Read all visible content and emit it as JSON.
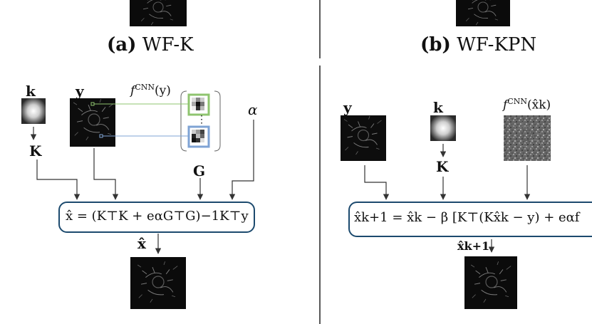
{
  "panel_a": {
    "caption_tag": "(a)",
    "caption_name": "WF-K",
    "label_k": "k",
    "label_y": "y",
    "label_f": "f",
    "label_f_sup": "CNN",
    "label_f_arg": "(y)",
    "label_alpha": "α",
    "label_K": "K",
    "label_G": "G",
    "dots": "⋮",
    "equation": "x̂ = (K⊤K + eαG⊤G)−1K⊤y",
    "output": "x̂"
  },
  "panel_b": {
    "caption_tag": "(b)",
    "caption_name": "WF-KPN",
    "label_y": "y",
    "label_k": "k",
    "label_f": "f",
    "label_f_sup": "CNN",
    "label_f_arg": "(x̂k)",
    "label_K": "K",
    "equation": "x̂k+1 = x̂k − β [K⊤(Kx̂k − y) + eαf",
    "output": "x̂k+1"
  },
  "colors": {
    "box_border": "#1c4a6e",
    "green": "#8fc46f",
    "blue": "#7fa3d4",
    "arrow": "#333333"
  }
}
